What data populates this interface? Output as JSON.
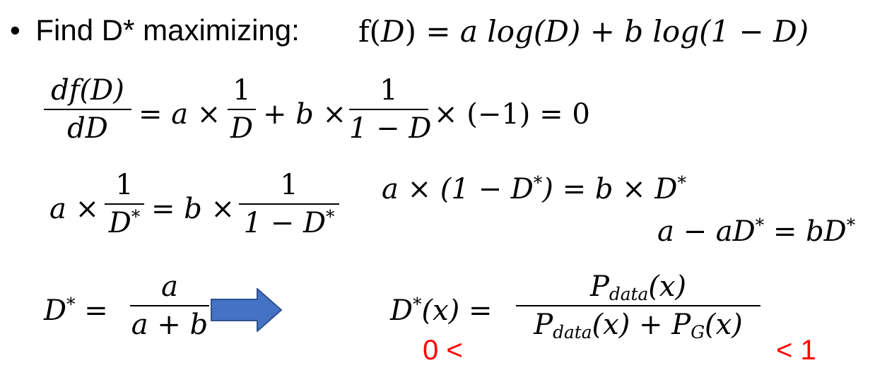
{
  "bullet": {
    "symbol": "•",
    "text": "Find D* maximizing:",
    "formula_lhs": "f(",
    "formula_lhs_var": "D",
    "formula_lhs_close": ")",
    "formula_rhs": "= a log(D) + b log(1 − D)"
  },
  "row1": {
    "lhs_num": "df(D)",
    "lhs_den": "dD",
    "eq1": "= a ×",
    "frac1_num": "1",
    "frac1_den": "D",
    "plus": "+ b ×",
    "frac2_num": "1",
    "frac2_den": "1 − D",
    "tail": "× (−1)  = 0"
  },
  "row2": {
    "a_times": "a ×",
    "frac1_num": "1",
    "frac1_den": "D*",
    "eq": "= b ×",
    "frac2_num": "1",
    "frac2_den": "1 − D*",
    "right_eq1": "a × (1 − D*) = b × D*",
    "right_eq2": "a − aD* = bD*"
  },
  "row3": {
    "dstar_lhs": "D* =",
    "frac_num": "a",
    "frac_den": "a + b",
    "result_lhs": "D*(x) =",
    "result_num": "P_data(x)",
    "result_den": "P_data(x) + P_G(x)",
    "lower_bound": "0 <",
    "upper_bound": "< 1"
  },
  "colors": {
    "text": "#000000",
    "highlight": "#ff0000",
    "arrow_fill": "#4472c4",
    "arrow_stroke": "#2f528f"
  },
  "icons": {
    "arrow": "right-arrow-icon"
  }
}
